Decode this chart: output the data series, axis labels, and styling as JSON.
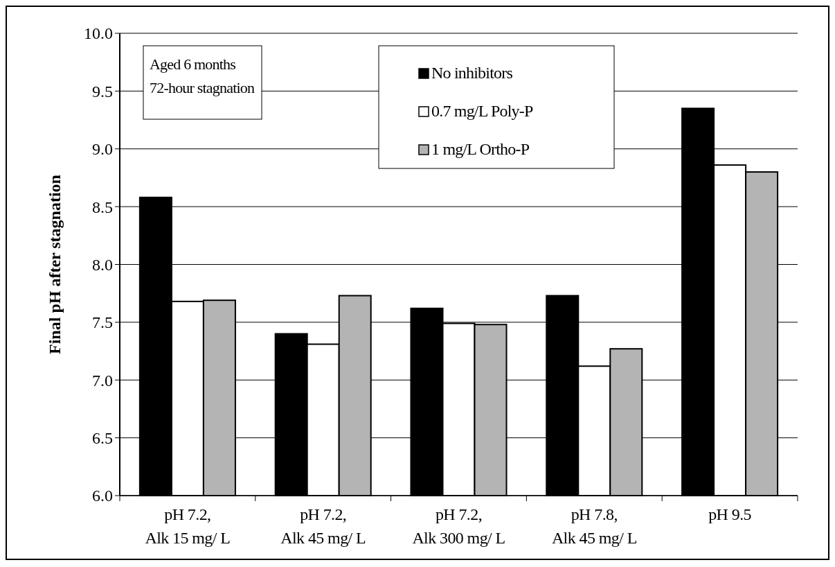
{
  "chart_data": {
    "type": "bar",
    "ylabel": "Final pH after stagnation",
    "categories": [
      "pH 7.2, Alk 15 mg/ L",
      "pH 7.2, Alk 45 mg/ L",
      "pH 7.2, Alk 300 mg/ L",
      "pH 7.8, Alk 45 mg/ L",
      "pH 9.5"
    ],
    "series": [
      {
        "name": "No inhibitors",
        "color": "#000000",
        "values": [
          8.58,
          7.4,
          7.62,
          7.73,
          9.35
        ]
      },
      {
        "name": "0.7 mg/L Poly-P",
        "color": "#ffffff",
        "values": [
          7.68,
          7.31,
          7.49,
          7.12,
          8.86
        ]
      },
      {
        "name": "1 mg/L Ortho-P",
        "color": "#b4b4b4",
        "values": [
          7.69,
          7.73,
          7.48,
          7.27,
          8.8
        ]
      }
    ],
    "ylim": [
      6,
      10
    ],
    "yticks": [
      {
        "value": 6,
        "label": "6.0"
      },
      {
        "value": 6.5,
        "label": "6.5"
      },
      {
        "value": 7,
        "label": "7.0"
      },
      {
        "value": 7.5,
        "label": "7.5"
      },
      {
        "value": 8,
        "label": "8.0"
      },
      {
        "value": 8.5,
        "label": "8.5"
      },
      {
        "value": 9,
        "label": "9.0"
      },
      {
        "value": 9.5,
        "label": "9.5"
      },
      {
        "value": 10,
        "label": "10.0"
      }
    ],
    "grid": "y",
    "legend": "top",
    "annotations": [
      "Aged 6 months",
      "72-hour stagnation"
    ]
  }
}
